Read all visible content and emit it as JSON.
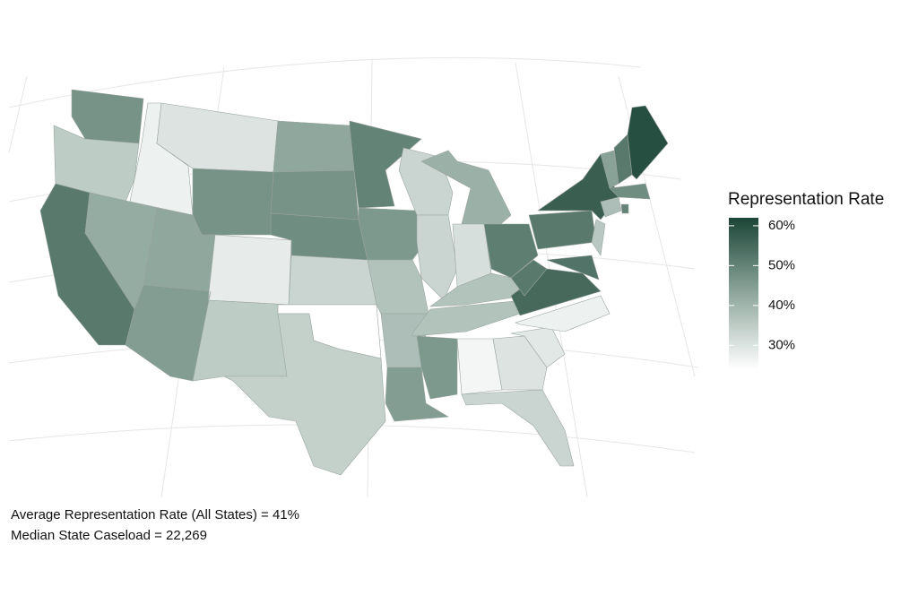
{
  "chart_data": {
    "type": "choropleth",
    "legend_title": "Representation Rate",
    "annotations": [
      "Average Representation Rate (All States) = 41%",
      "Median State Caseload = 22,269"
    ],
    "values": [
      47,
      35,
      52,
      27,
      42,
      30,
      47,
      43,
      45,
      28,
      35,
      43,
      47,
      48,
      33,
      null,
      34,
      50,
      46,
      37,
      38,
      45,
      33,
      33,
      41,
      31,
      51,
      37,
      37,
      46,
      26,
      30,
      33,
      29,
      27,
      55,
      52,
      52,
      57,
      36,
      53,
      38,
      50,
      48,
      44,
      52,
      60
    ],
    "colors": [
      "#ffffff",
      "#8fa79d",
      "#1b4536"
    ],
    "clim": [
      24,
      62
    ],
    "ticks": [
      {
        "value": 30,
        "label": "30%"
      },
      {
        "value": 40,
        "label": "40%"
      },
      {
        "value": 50,
        "label": "50%"
      },
      {
        "value": 60,
        "label": "60%"
      }
    ]
  }
}
